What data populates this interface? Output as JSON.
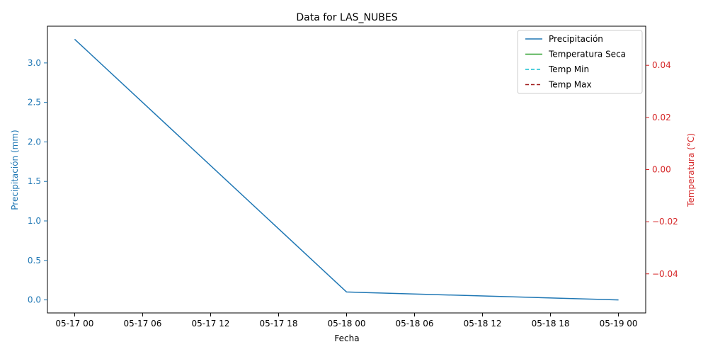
{
  "chart_data": {
    "type": "line",
    "title": "Data for LAS_NUBES",
    "xlabel": "Fecha",
    "ylabel_left": "Precipitación (mm)",
    "ylabel_right": "Temperatura (°C)",
    "x_ticks": [
      "05-17 00",
      "05-17 06",
      "05-17 12",
      "05-17 18",
      "05-18 00",
      "05-18 06",
      "05-18 12",
      "05-18 18",
      "05-19 00"
    ],
    "x_hours": [
      0,
      6,
      12,
      18,
      24,
      30,
      36,
      42,
      48
    ],
    "xlim_hours": [
      -2.4,
      50.4
    ],
    "y_left_ticks": [
      "0.0",
      "0.5",
      "1.0",
      "1.5",
      "2.0",
      "2.5",
      "3.0"
    ],
    "y_left_tick_values": [
      0,
      0.5,
      1.0,
      1.5,
      2.0,
      2.5,
      3.0
    ],
    "ylim_left": [
      -0.165,
      3.465
    ],
    "y_right_ticks": [
      "−0.04",
      "−0.02",
      "0.00",
      "0.02",
      "0.04"
    ],
    "y_right_tick_values": [
      -0.04,
      -0.02,
      0.0,
      0.02,
      0.04
    ],
    "ylim_right": [
      -0.055,
      0.055
    ],
    "legend_position": "top-right",
    "colors": {
      "left_axis": "#1f77b4",
      "right_axis": "#d62728",
      "precip": "#1f77b4",
      "temp_seca": "#2ca02c",
      "temp_min": "#17becf",
      "temp_max": "#a01c1c"
    },
    "series": [
      {
        "name": "Precipitación",
        "axis": "left",
        "style": "solid",
        "color_key": "precip",
        "x": [
          "05-17 00",
          "05-18 00",
          "05-19 00"
        ],
        "x_hours": [
          0,
          24,
          48
        ],
        "values": [
          3.3,
          0.1,
          0.0
        ]
      },
      {
        "name": "Temperatura Seca",
        "axis": "right",
        "style": "solid",
        "color_key": "temp_seca",
        "x_hours": [],
        "values": []
      },
      {
        "name": "Temp Min",
        "axis": "right",
        "style": "dashed",
        "color_key": "temp_min",
        "x_hours": [],
        "values": []
      },
      {
        "name": "Temp Max",
        "axis": "right",
        "style": "dashed",
        "color_key": "temp_max",
        "x_hours": [],
        "values": []
      }
    ]
  }
}
